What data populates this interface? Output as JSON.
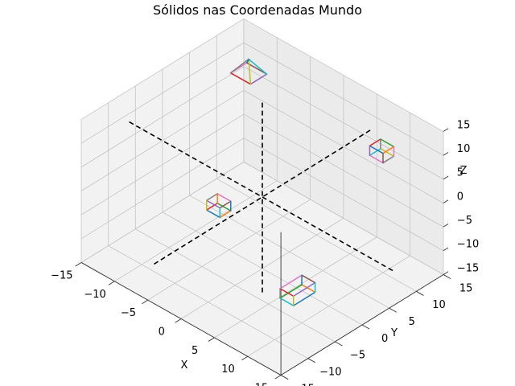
{
  "chart_data": {
    "type": "3d-wireframe",
    "title": "Sólidos nas Coordenadas Mundo",
    "xlabel": "X",
    "ylabel": "Y",
    "zlabel": "Z",
    "xlim": [
      -15,
      15
    ],
    "ylim": [
      -15,
      15
    ],
    "zlim": [
      -15,
      15
    ],
    "xticks": [
      "−15",
      "−10",
      "−5",
      "0",
      "5",
      "10",
      "15"
    ],
    "yticks": [
      "−15",
      "−10",
      "−5",
      "0",
      "5",
      "10",
      "15"
    ],
    "zticks": [
      "−15",
      "−10",
      "−5",
      "0",
      "5",
      "10",
      "15"
    ],
    "grid": true,
    "world_axes": {
      "style": "dashed",
      "color": "#000000",
      "extent": [
        -20,
        20
      ]
    },
    "solids": [
      {
        "shape": "box",
        "center": [
          -9,
          3,
          -11
        ],
        "size": [
          2,
          2,
          2
        ]
      },
      {
        "shape": "pyramid",
        "center": [
          -11,
          11,
          11
        ],
        "size": [
          3,
          3,
          3
        ]
      },
      {
        "shape": "box",
        "center": [
          9,
          11,
          9
        ],
        "size": [
          2,
          2,
          2
        ]
      },
      {
        "shape": "box",
        "center": [
          11,
          -7,
          -6
        ],
        "size": [
          2,
          4,
          2
        ]
      }
    ],
    "edge_colors": [
      "#1f77b4",
      "#ff7f0e",
      "#2ca02c",
      "#d62728",
      "#9467bd",
      "#8c564b",
      "#e377c2",
      "#7f7f7f",
      "#bcbd22",
      "#17becf"
    ]
  }
}
